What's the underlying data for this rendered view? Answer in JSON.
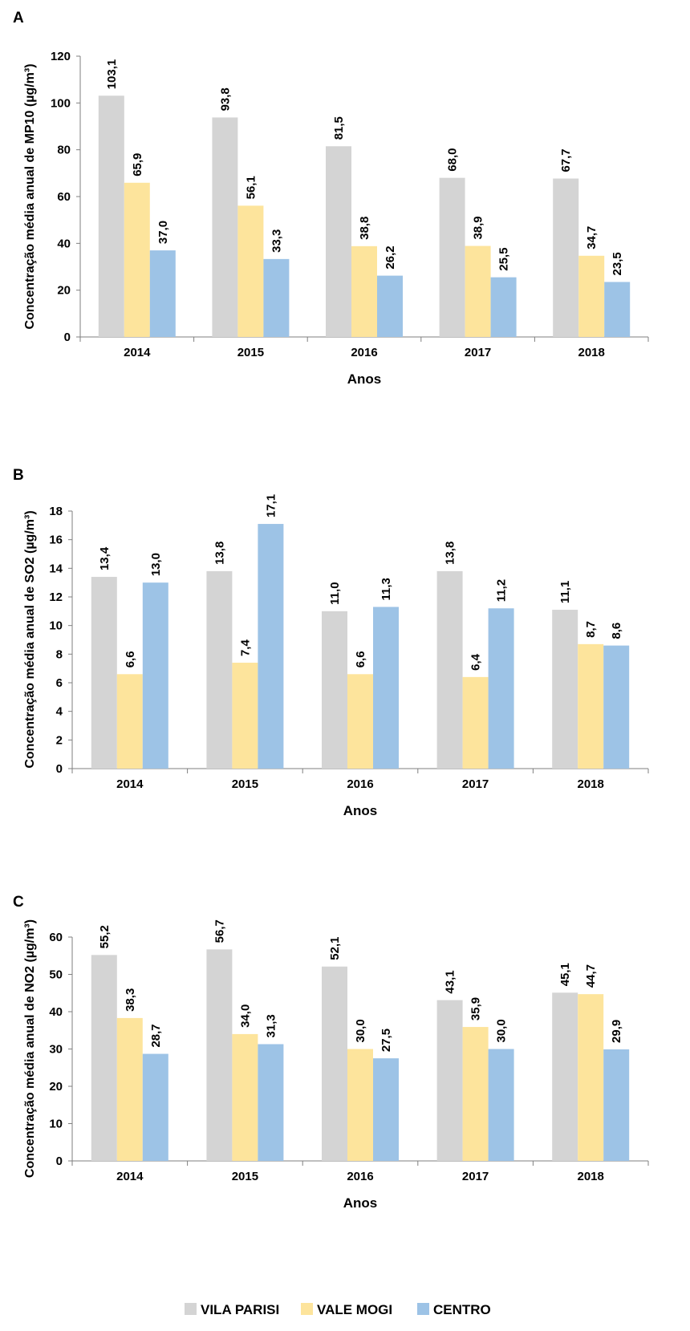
{
  "legend": [
    {
      "label": "VILA PARISI",
      "color": "#d4d4d4"
    },
    {
      "label": "VALE MOGI",
      "color": "#fde49c"
    },
    {
      "label": "CENTRO",
      "color": "#9dc3e6"
    }
  ],
  "chart_data": [
    {
      "type": "bar",
      "panel": "A",
      "xlabel": "Anos",
      "ylabel": "Concentração média anual de MP10 (µg/m³)",
      "categories": [
        "2014",
        "2015",
        "2016",
        "2017",
        "2018"
      ],
      "ylim": [
        0,
        120
      ],
      "yticks": [
        "0",
        "20",
        "40",
        "60",
        "80",
        "100",
        "120"
      ],
      "series": [
        {
          "name": "VILA PARISI",
          "values": [
            103.1,
            93.8,
            81.5,
            68.0,
            67.7
          ],
          "labels": [
            "103,1",
            "93,8",
            "81,5",
            "68,0",
            "67,7"
          ]
        },
        {
          "name": "VALE MOGI",
          "values": [
            65.9,
            56.1,
            38.8,
            38.9,
            34.7
          ],
          "labels": [
            "65,9",
            "56,1",
            "38,8",
            "38,9",
            "34,7"
          ]
        },
        {
          "name": "CENTRO",
          "values": [
            37.0,
            33.3,
            26.2,
            25.5,
            23.5
          ],
          "labels": [
            "37,0",
            "33,3",
            "26,2",
            "25,5",
            "23,5"
          ]
        }
      ]
    },
    {
      "type": "bar",
      "panel": "B",
      "xlabel": "Anos",
      "ylabel": "Concentração média anual de SO2 (µg/m³)",
      "categories": [
        "2014",
        "2015",
        "2016",
        "2017",
        "2018"
      ],
      "ylim": [
        0,
        18
      ],
      "yticks": [
        "0",
        "2",
        "4",
        "6",
        "8",
        "10",
        "12",
        "14",
        "16",
        "18"
      ],
      "series": [
        {
          "name": "VILA PARISI",
          "values": [
            13.4,
            13.8,
            11.0,
            13.8,
            11.1
          ],
          "labels": [
            "13,4",
            "13,8",
            "11,0",
            "13,8",
            "11,1"
          ]
        },
        {
          "name": "VALE MOGI",
          "values": [
            6.6,
            7.4,
            6.6,
            6.4,
            8.7
          ],
          "labels": [
            "6,6",
            "7,4",
            "6,6",
            "6,4",
            "8,7"
          ]
        },
        {
          "name": "CENTRO",
          "values": [
            13.0,
            17.1,
            11.3,
            11.2,
            8.6
          ],
          "labels": [
            "13,0",
            "17,1",
            "11,3",
            "11,2",
            "8,6"
          ]
        }
      ]
    },
    {
      "type": "bar",
      "panel": "C",
      "xlabel": "Anos",
      "ylabel": "Concentração média anual de NO2 (µg/m³)",
      "categories": [
        "2014",
        "2015",
        "2016",
        "2017",
        "2018"
      ],
      "ylim": [
        0,
        60
      ],
      "yticks": [
        "0",
        "10",
        "20",
        "30",
        "40",
        "50",
        "60"
      ],
      "series": [
        {
          "name": "VILA PARISI",
          "values": [
            55.2,
            56.7,
            52.1,
            43.1,
            45.1
          ],
          "labels": [
            "55,2",
            "56,7",
            "52,1",
            "43,1",
            "45,1"
          ]
        },
        {
          "name": "VALE MOGI",
          "values": [
            38.3,
            34.0,
            30.0,
            35.9,
            44.7
          ],
          "labels": [
            "38,3",
            "34,0",
            "30,0",
            "35,9",
            "44,7"
          ]
        },
        {
          "name": "CENTRO",
          "values": [
            28.7,
            31.3,
            27.5,
            30.0,
            29.9
          ],
          "labels": [
            "28,7",
            "31,3",
            "27,5",
            "30,0",
            "29,9"
          ]
        }
      ]
    }
  ]
}
